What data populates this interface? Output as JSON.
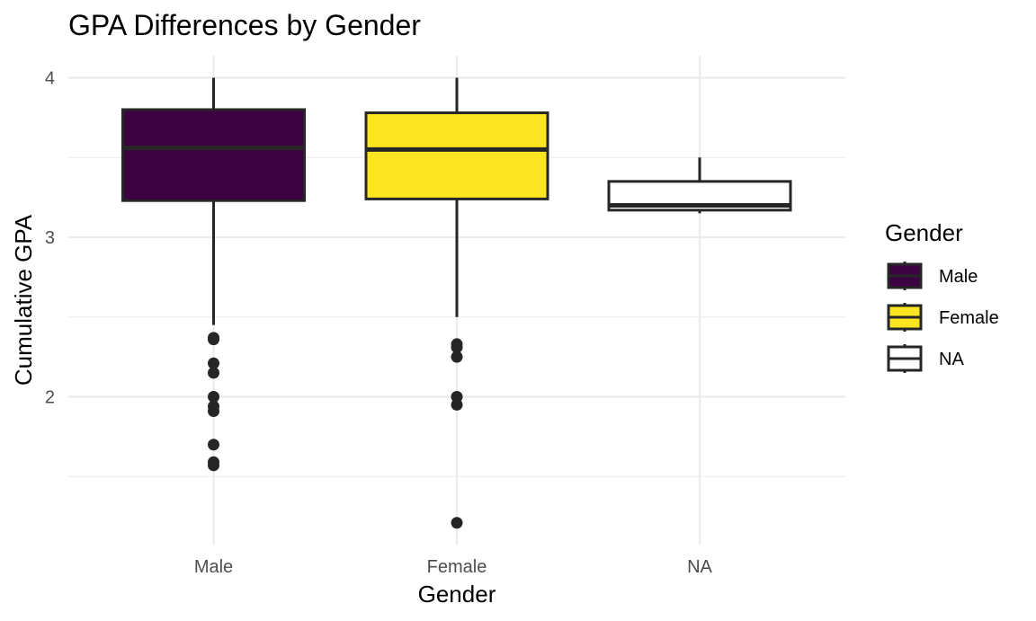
{
  "chart_data": {
    "type": "boxplot",
    "title": "GPA Differences by Gender",
    "xlabel": "Gender",
    "ylabel": "Cumulative GPA",
    "categories": [
      "Male",
      "Female",
      "NA"
    ],
    "ylim": [
      1.15,
      4.15
    ],
    "yticks": [
      2,
      3,
      4
    ],
    "yminor": [
      1.5,
      2.5,
      3.5
    ],
    "grid": true,
    "legend": {
      "title": "Gender",
      "position": "right",
      "entries": [
        "Male",
        "Female",
        "NA"
      ]
    },
    "series": [
      {
        "category": "Male",
        "fill": "#3b0140",
        "min": 2.45,
        "q1": 3.23,
        "median": 3.56,
        "q3": 3.8,
        "max": 4.0,
        "outliers": [
          2.37,
          2.36,
          2.21,
          2.15,
          2.0,
          1.94,
          1.91,
          1.7,
          1.59,
          1.57
        ]
      },
      {
        "category": "Female",
        "fill": "#fde621",
        "min": 2.5,
        "q1": 3.24,
        "median": 3.55,
        "q3": 3.78,
        "max": 4.0,
        "outliers": [
          2.33,
          2.31,
          2.25,
          2.0,
          1.95,
          1.21
        ]
      },
      {
        "category": "NA",
        "fill": "#ffffff",
        "min": 3.15,
        "q1": 3.17,
        "median": 3.2,
        "q3": 3.35,
        "max": 3.5,
        "outliers": []
      }
    ],
    "line_color": "#262626"
  }
}
